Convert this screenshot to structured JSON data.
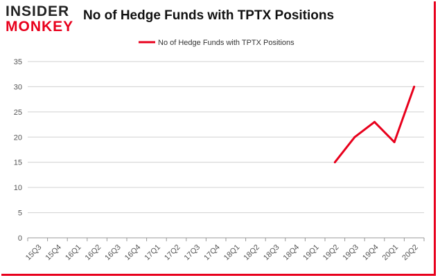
{
  "brand": {
    "line1": "INSIDER",
    "line2": "MONKEY"
  },
  "colors": {
    "accent": "#e8001c",
    "grid": "#d0d0d0",
    "series": "#e8001c"
  },
  "chart_data": {
    "type": "line",
    "title": "No of Hedge Funds with TPTX Positions",
    "xlabel": "",
    "ylabel": "",
    "ylim": [
      0,
      35
    ],
    "yticks": [
      0,
      5,
      10,
      15,
      20,
      25,
      30,
      35
    ],
    "grid": true,
    "legend": "top-center",
    "categories": [
      "15Q3",
      "15Q4",
      "16Q1",
      "16Q2",
      "16Q3",
      "16Q4",
      "17Q1",
      "17Q2",
      "17Q3",
      "17Q4",
      "18Q1",
      "18Q2",
      "18Q3",
      "18Q4",
      "19Q1",
      "19Q2",
      "19Q3",
      "19Q4",
      "20Q1",
      "20Q2"
    ],
    "series": [
      {
        "name": "No of Hedge Funds with TPTX Positions",
        "values": [
          null,
          null,
          null,
          null,
          null,
          null,
          null,
          null,
          null,
          null,
          null,
          null,
          null,
          null,
          null,
          15,
          20,
          23,
          19,
          30
        ]
      }
    ]
  }
}
